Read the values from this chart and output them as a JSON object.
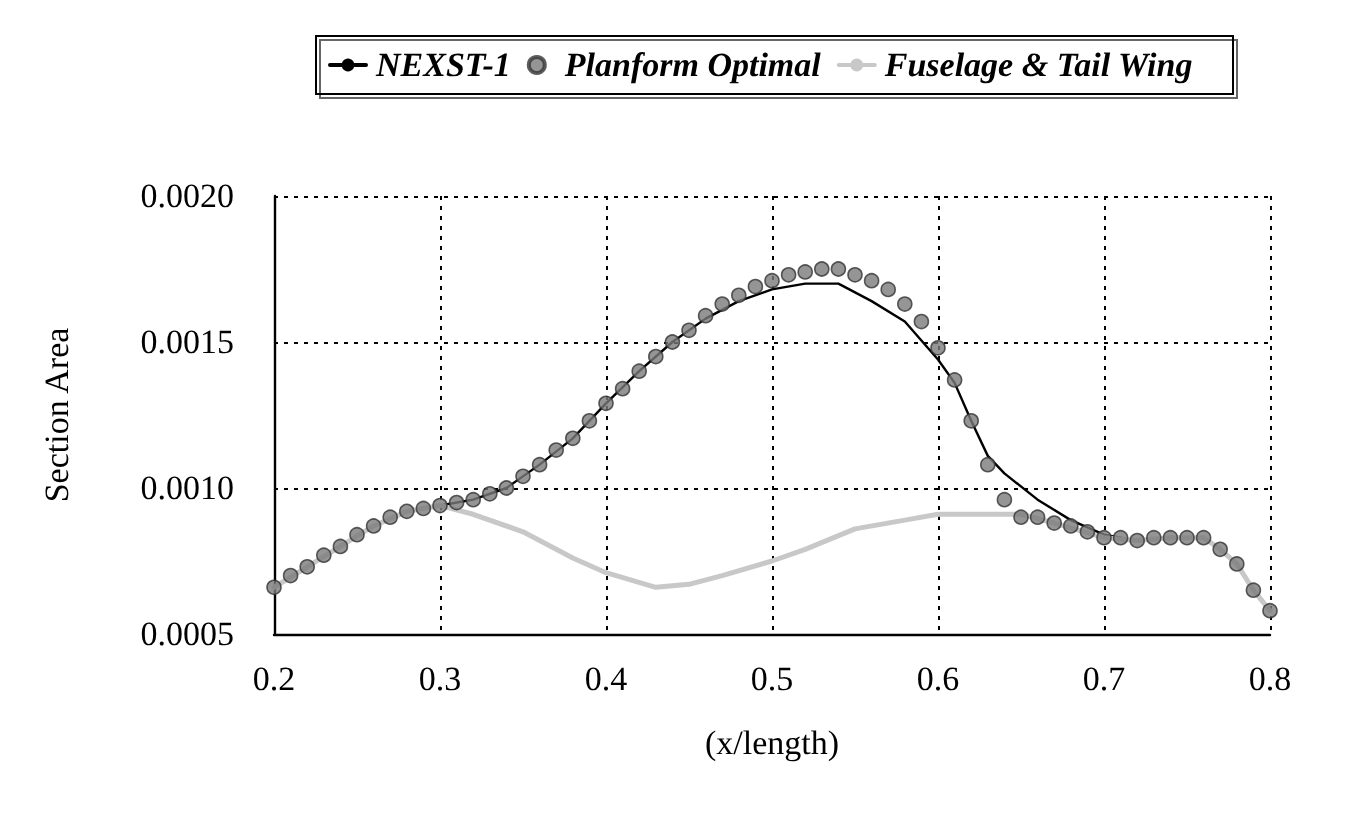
{
  "chart_data": {
    "type": "line",
    "xlabel": "(x/length)",
    "ylabel": "Section Area",
    "xlim": [
      0.2,
      0.8
    ],
    "xticks": [
      0.2,
      0.3,
      0.4,
      0.5,
      0.6,
      0.7,
      0.8
    ],
    "ylim": [
      0.0005,
      0.002
    ],
    "yticks": [
      {
        "value": 0.0005,
        "label": "0.0005"
      },
      {
        "value": 0.001,
        "label": "0.0010"
      },
      {
        "value": 0.0015,
        "label": "0.0015"
      },
      {
        "value": 0.002,
        "label": "0.0020"
      }
    ],
    "grid": true,
    "legend": "top",
    "marker": "none",
    "line_style": "solid",
    "series": [
      {
        "name": "NEXST-1",
        "color": "#000000",
        "x": [
          0.2,
          0.22,
          0.24,
          0.26,
          0.28,
          0.3,
          0.32,
          0.34,
          0.36,
          0.38,
          0.4,
          0.42,
          0.44,
          0.46,
          0.48,
          0.5,
          0.52,
          0.54,
          0.56,
          0.58,
          0.6,
          0.61,
          0.62,
          0.63,
          0.64,
          0.66,
          0.68,
          0.7,
          0.72,
          0.74,
          0.76,
          0.77,
          0.78,
          0.79,
          0.8
        ],
        "values": [
          0.00066,
          0.00073,
          0.0008,
          0.00087,
          0.00092,
          0.00094,
          0.00096,
          0.001,
          0.00108,
          0.00117,
          0.00129,
          0.0014,
          0.0015,
          0.00158,
          0.00164,
          0.00168,
          0.0017,
          0.0017,
          0.00164,
          0.00157,
          0.00144,
          0.00136,
          0.00123,
          0.00111,
          0.00105,
          0.00096,
          0.00089,
          0.00084,
          0.00082,
          0.00083,
          0.00083,
          0.00079,
          0.00074,
          0.00065,
          0.00058
        ]
      },
      {
        "name": "Planform Optimal",
        "type": "scatter",
        "color": "#7a7a7a",
        "marker": "circle",
        "x": [
          0.2,
          0.21,
          0.22,
          0.23,
          0.24,
          0.25,
          0.26,
          0.27,
          0.28,
          0.29,
          0.3,
          0.31,
          0.32,
          0.33,
          0.34,
          0.35,
          0.36,
          0.37,
          0.38,
          0.39,
          0.4,
          0.41,
          0.42,
          0.43,
          0.44,
          0.45,
          0.46,
          0.47,
          0.48,
          0.49,
          0.5,
          0.51,
          0.52,
          0.53,
          0.54,
          0.55,
          0.56,
          0.57,
          0.58,
          0.59,
          0.6,
          0.61,
          0.62,
          0.63,
          0.64,
          0.65,
          0.66,
          0.67,
          0.68,
          0.69,
          0.7,
          0.71,
          0.72,
          0.73,
          0.74,
          0.75,
          0.76,
          0.77,
          0.78,
          0.79,
          0.8
        ],
        "values": [
          0.00066,
          0.0007,
          0.00073,
          0.00077,
          0.0008,
          0.00084,
          0.00087,
          0.0009,
          0.00092,
          0.00093,
          0.00094,
          0.00095,
          0.00096,
          0.00098,
          0.001,
          0.00104,
          0.00108,
          0.00113,
          0.00117,
          0.00123,
          0.00129,
          0.00134,
          0.0014,
          0.00145,
          0.0015,
          0.00154,
          0.00159,
          0.00163,
          0.00166,
          0.00169,
          0.00171,
          0.00173,
          0.00174,
          0.00175,
          0.00175,
          0.00173,
          0.00171,
          0.00168,
          0.00163,
          0.00157,
          0.00148,
          0.00137,
          0.00123,
          0.00108,
          0.00096,
          0.0009,
          0.0009,
          0.00088,
          0.00087,
          0.00085,
          0.00083,
          0.00083,
          0.00082,
          0.00083,
          0.00083,
          0.00083,
          0.00083,
          0.00079,
          0.00074,
          0.00065,
          0.00058
        ]
      },
      {
        "name": "Fuselage & Tail Wing",
        "color": "#c8c8c8",
        "x": [
          0.2,
          0.22,
          0.24,
          0.26,
          0.28,
          0.3,
          0.32,
          0.35,
          0.38,
          0.4,
          0.43,
          0.45,
          0.47,
          0.5,
          0.52,
          0.55,
          0.58,
          0.6,
          0.65,
          0.67,
          0.7,
          0.72,
          0.74,
          0.76,
          0.77,
          0.78,
          0.79,
          0.8
        ],
        "values": [
          0.00066,
          0.00073,
          0.0008,
          0.00087,
          0.00092,
          0.00094,
          0.00091,
          0.00085,
          0.00076,
          0.00071,
          0.00066,
          0.00067,
          0.0007,
          0.00075,
          0.00079,
          0.00086,
          0.00089,
          0.00091,
          0.00091,
          0.00088,
          0.00083,
          0.00082,
          0.00083,
          0.00083,
          0.00079,
          0.00074,
          0.00065,
          0.00058
        ]
      }
    ]
  }
}
